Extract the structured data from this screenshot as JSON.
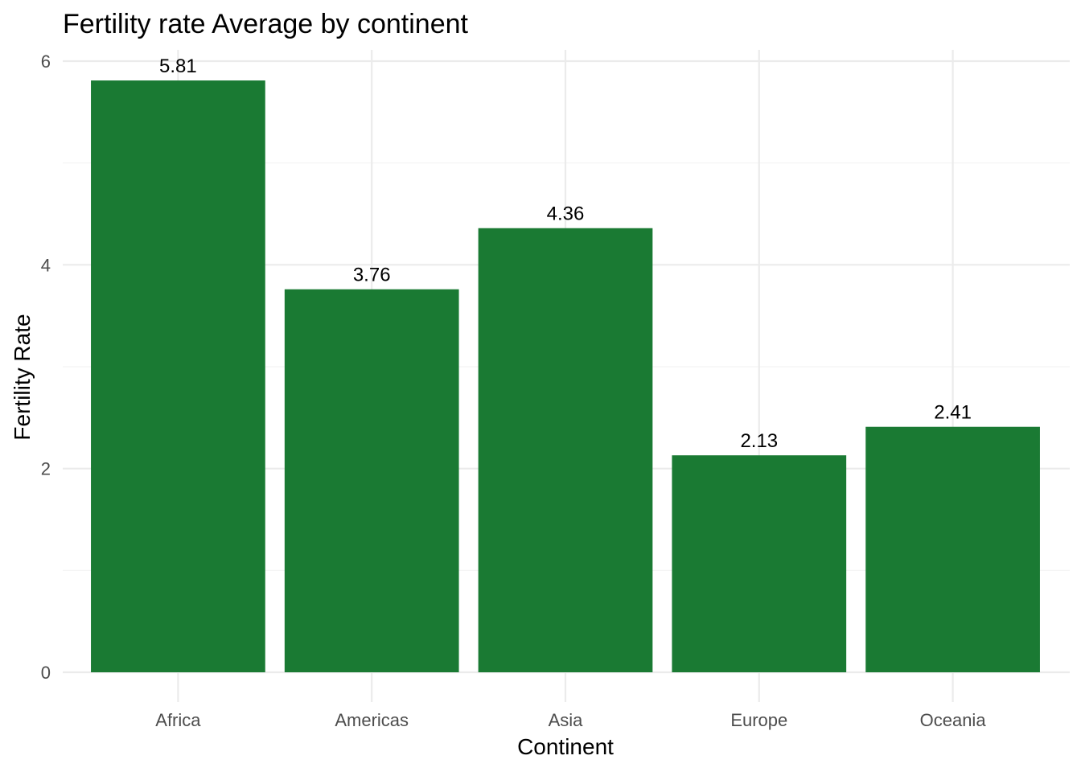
{
  "chart_data": {
    "type": "bar",
    "title": "Fertility rate Average by continent",
    "xlabel": "Continent",
    "ylabel": "Fertility Rate",
    "categories": [
      "Africa",
      "Americas",
      "Asia",
      "Europe",
      "Oceania"
    ],
    "values": [
      5.81,
      3.76,
      4.36,
      2.13,
      2.41
    ],
    "value_labels": [
      "5.81",
      "3.76",
      "4.36",
      "2.13",
      "2.41"
    ],
    "ylim": [
      0,
      6
    ],
    "yticks": [
      0,
      2,
      4,
      6
    ],
    "ytick_labels": [
      "0",
      "2",
      "4",
      "6"
    ],
    "grid": true,
    "legend": "none",
    "bar_color": "#1a7a33"
  }
}
